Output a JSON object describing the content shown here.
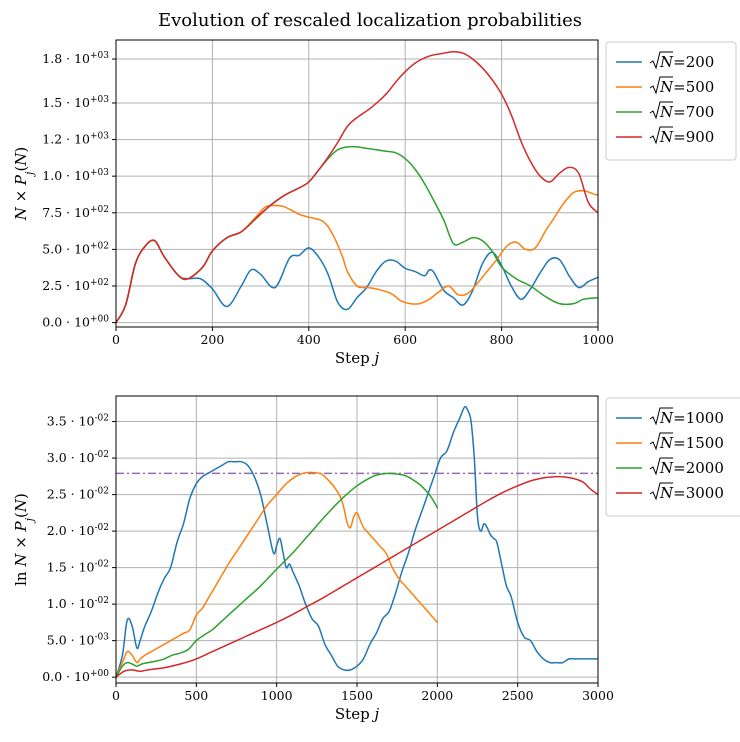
{
  "suptitle": "Evolution of rescaled localization probabilities",
  "colors": {
    "blue": "#1f77b4",
    "orange": "#ff7f0e",
    "green": "#2ca02c",
    "red": "#d62728",
    "purple": "#9467bd"
  },
  "chart_data": [
    {
      "type": "line",
      "xlabel": "Step j",
      "ylabel": "N × P_j(N)",
      "xlim": [
        0,
        1000
      ],
      "ylim": [
        -30,
        1930
      ],
      "xticks": [
        0,
        200,
        400,
        600,
        800,
        1000
      ],
      "xtick_labels": [
        "0",
        "200",
        "400",
        "600",
        "800",
        "1000"
      ],
      "yticks": [
        0,
        250,
        500,
        750,
        1000,
        1250,
        1500,
        1800
      ],
      "ytick_labels": [
        "0.0 · 10^+00",
        "2.5 · 10^+02",
        "5.0 · 10^+02",
        "7.5 · 10^+02",
        "1.0 · 10^+03",
        "1.2 · 10^+03",
        "1.5 · 10^+03",
        "1.8 · 10^+03"
      ],
      "grid": true,
      "legend": "outside-right",
      "series": [
        {
          "name": "√N=200",
          "color": "#1f77b4",
          "x": [
            0,
            20,
            40,
            60,
            80,
            100,
            130,
            150,
            175,
            200,
            230,
            260,
            280,
            300,
            330,
            360,
            380,
            400,
            420,
            440,
            460,
            480,
            500,
            520,
            540,
            560,
            580,
            600,
            620,
            640,
            650,
            660,
            680,
            700,
            720,
            740,
            760,
            780,
            800,
            820,
            840,
            860,
            880,
            900,
            920,
            940,
            960,
            980,
            1000
          ],
          "y": [
            0,
            120,
            400,
            520,
            560,
            450,
            320,
            300,
            300,
            230,
            110,
            250,
            360,
            330,
            240,
            440,
            460,
            510,
            450,
            330,
            140,
            90,
            170,
            240,
            350,
            420,
            420,
            370,
            350,
            320,
            360,
            340,
            220,
            170,
            120,
            220,
            400,
            480,
            390,
            250,
            160,
            230,
            340,
            430,
            430,
            320,
            240,
            280,
            310
          ]
        },
        {
          "name": "√N=500",
          "color": "#ff7f0e",
          "x": [
            0,
            20,
            40,
            60,
            80,
            100,
            130,
            150,
            180,
            200,
            230,
            260,
            290,
            310,
            330,
            350,
            380,
            400,
            430,
            450,
            470,
            480,
            500,
            520,
            540,
            570,
            590,
            610,
            630,
            650,
            670,
            690,
            710,
            730,
            750,
            770,
            790,
            810,
            830,
            850,
            870,
            890,
            910,
            930,
            950,
            970,
            990,
            1000
          ],
          "y": [
            0,
            120,
            400,
            520,
            560,
            450,
            320,
            300,
            380,
            490,
            580,
            620,
            720,
            790,
            800,
            790,
            740,
            720,
            690,
            600,
            450,
            350,
            250,
            240,
            230,
            200,
            150,
            130,
            130,
            160,
            210,
            250,
            190,
            200,
            270,
            350,
            430,
            520,
            550,
            500,
            510,
            620,
            720,
            820,
            890,
            900,
            880,
            870
          ]
        },
        {
          "name": "√N=700",
          "color": "#2ca02c",
          "x": [
            0,
            20,
            40,
            60,
            80,
            100,
            130,
            150,
            180,
            200,
            230,
            260,
            290,
            320,
            350,
            380,
            400,
            420,
            440,
            460,
            480,
            500,
            520,
            540,
            560,
            580,
            600,
            620,
            640,
            660,
            680,
            700,
            720,
            740,
            760,
            780,
            800,
            830,
            860,
            890,
            920,
            950,
            970,
            1000
          ],
          "y": [
            0,
            120,
            400,
            520,
            560,
            450,
            320,
            300,
            380,
            490,
            580,
            620,
            710,
            800,
            870,
            920,
            960,
            1040,
            1120,
            1180,
            1200,
            1200,
            1190,
            1180,
            1170,
            1160,
            1120,
            1050,
            950,
            830,
            700,
            540,
            550,
            580,
            560,
            490,
            380,
            300,
            250,
            180,
            130,
            130,
            160,
            170
          ]
        },
        {
          "name": "√N=900",
          "color": "#d62728",
          "x": [
            0,
            20,
            40,
            60,
            80,
            100,
            130,
            150,
            180,
            200,
            230,
            260,
            290,
            320,
            350,
            380,
            400,
            420,
            440,
            460,
            480,
            500,
            530,
            560,
            590,
            620,
            650,
            680,
            700,
            720,
            740,
            760,
            780,
            800,
            820,
            840,
            860,
            880,
            900,
            920,
            940,
            960,
            980,
            1000
          ],
          "y": [
            0,
            120,
            400,
            520,
            560,
            450,
            320,
            300,
            380,
            490,
            580,
            620,
            710,
            800,
            870,
            920,
            960,
            1040,
            1130,
            1230,
            1340,
            1400,
            1470,
            1560,
            1680,
            1770,
            1820,
            1840,
            1850,
            1840,
            1800,
            1740,
            1660,
            1560,
            1420,
            1240,
            1100,
            1000,
            960,
            1020,
            1060,
            1020,
            820,
            750
          ]
        }
      ]
    },
    {
      "type": "line",
      "xlabel": "Step j",
      "ylabel": "ln N × P_j(N)",
      "xlim": [
        0,
        3000
      ],
      "ylim": [
        -0.0008,
        0.0385
      ],
      "xticks": [
        0,
        500,
        1000,
        1500,
        2000,
        2500,
        3000
      ],
      "xtick_labels": [
        "0",
        "500",
        "1000",
        "1500",
        "2000",
        "2500",
        "3000"
      ],
      "yticks": [
        0,
        0.005,
        0.01,
        0.015,
        0.02,
        0.025,
        0.03,
        0.035
      ],
      "ytick_labels": [
        "0.0 · 10^+00",
        "5.0 · 10^-03",
        "1.0 · 10^-02",
        "1.5 · 10^-02",
        "2.0 · 10^-02",
        "2.5 · 10^-02",
        "3.0 · 10^-02",
        "3.5 · 10^-02"
      ],
      "grid": true,
      "legend": "outside-right",
      "hline": {
        "y": 0.0279,
        "color": "#9467bd",
        "style": "dash-dot"
      },
      "series": [
        {
          "name": "√N=1000",
          "color": "#1f77b4",
          "x": [
            0,
            40,
            70,
            100,
            130,
            150,
            180,
            220,
            260,
            300,
            340,
            380,
            420,
            460,
            500,
            540,
            580,
            620,
            660,
            700,
            740,
            780,
            820,
            860,
            900,
            940,
            980,
            1000,
            1020,
            1040,
            1060,
            1080,
            1100,
            1140,
            1180,
            1220,
            1260,
            1300,
            1340,
            1380,
            1420,
            1460,
            1500,
            1540,
            1580,
            1620,
            1660,
            1700,
            1740,
            1780,
            1820,
            1860,
            1900,
            1940,
            1980,
            2020,
            2060,
            2100,
            2140,
            2170,
            2190,
            2210,
            2230,
            2250,
            2270,
            2290,
            2310,
            2330,
            2350,
            2370,
            2400,
            2430,
            2460,
            2500,
            2540,
            2580,
            2620,
            2660,
            2700,
            2740,
            2780,
            2820,
            2860,
            2900,
            2940,
            2980,
            3000
          ],
          "y": [
            0,
            0.003,
            0.0078,
            0.007,
            0.004,
            0.005,
            0.007,
            0.009,
            0.0115,
            0.0135,
            0.015,
            0.0185,
            0.021,
            0.0245,
            0.0265,
            0.0275,
            0.028,
            0.0285,
            0.029,
            0.0295,
            0.0295,
            0.0295,
            0.029,
            0.0275,
            0.025,
            0.021,
            0.017,
            0.018,
            0.019,
            0.017,
            0.015,
            0.0155,
            0.0145,
            0.0125,
            0.01,
            0.008,
            0.007,
            0.0045,
            0.003,
            0.0015,
            0.001,
            0.001,
            0.0015,
            0.0025,
            0.0045,
            0.006,
            0.008,
            0.009,
            0.0115,
            0.0145,
            0.017,
            0.02,
            0.0225,
            0.025,
            0.0275,
            0.03,
            0.031,
            0.0335,
            0.0355,
            0.037,
            0.0365,
            0.035,
            0.03,
            0.022,
            0.02,
            0.021,
            0.0205,
            0.0195,
            0.019,
            0.0185,
            0.0155,
            0.0125,
            0.011,
            0.0075,
            0.0055,
            0.005,
            0.0035,
            0.0025,
            0.002,
            0.002,
            0.002,
            0.0025,
            0.0025,
            0.0025,
            0.0025,
            0.0025,
            0.0025
          ]
        },
        {
          "name": "√N=1500",
          "color": "#ff7f0e",
          "x": [
            0,
            40,
            70,
            100,
            130,
            150,
            180,
            220,
            260,
            300,
            340,
            380,
            420,
            460,
            500,
            540,
            580,
            620,
            660,
            700,
            760,
            820,
            880,
            940,
            1000,
            1060,
            1120,
            1180,
            1240,
            1280,
            1320,
            1360,
            1400,
            1420,
            1440,
            1460,
            1480,
            1500,
            1520,
            1540,
            1560,
            1600,
            1640,
            1680,
            1720,
            1760,
            1800,
            1840,
            1880,
            1920,
            1960,
            2000
          ],
          "y": [
            0,
            0.002,
            0.0035,
            0.003,
            0.002,
            0.0025,
            0.003,
            0.0035,
            0.004,
            0.0045,
            0.005,
            0.0055,
            0.006,
            0.0065,
            0.0085,
            0.0095,
            0.011,
            0.0125,
            0.014,
            0.0155,
            0.0175,
            0.0195,
            0.0215,
            0.0235,
            0.025,
            0.0265,
            0.0275,
            0.028,
            0.028,
            0.0278,
            0.027,
            0.026,
            0.0245,
            0.023,
            0.021,
            0.0205,
            0.022,
            0.0225,
            0.0215,
            0.0205,
            0.02,
            0.019,
            0.018,
            0.017,
            0.015,
            0.0135,
            0.0125,
            0.0115,
            0.0105,
            0.0095,
            0.0085,
            0.0075
          ]
        },
        {
          "name": "√N=2000",
          "color": "#2ca02c",
          "x": [
            0,
            40,
            70,
            100,
            130,
            160,
            200,
            250,
            300,
            350,
            400,
            450,
            500,
            550,
            600,
            650,
            700,
            750,
            800,
            900,
            1000,
            1100,
            1200,
            1300,
            1400,
            1500,
            1600,
            1650,
            1700,
            1750,
            1800,
            1850,
            1900,
            1950,
            1980,
            2000
          ],
          "y": [
            0,
            0.0015,
            0.002,
            0.0018,
            0.0015,
            0.0018,
            0.002,
            0.0022,
            0.0025,
            0.003,
            0.0033,
            0.0038,
            0.005,
            0.0058,
            0.0065,
            0.0075,
            0.0085,
            0.0095,
            0.0105,
            0.0125,
            0.0148,
            0.017,
            0.0195,
            0.022,
            0.0243,
            0.0262,
            0.0275,
            0.0278,
            0.0279,
            0.0278,
            0.0276,
            0.027,
            0.0262,
            0.025,
            0.024,
            0.0232
          ]
        },
        {
          "name": "√N=3000",
          "color": "#d62728",
          "x": [
            0,
            50,
            100,
            150,
            200,
            300,
            400,
            500,
            600,
            700,
            800,
            900,
            1000,
            1100,
            1200,
            1300,
            1400,
            1500,
            1600,
            1700,
            1800,
            1900,
            2000,
            2100,
            2200,
            2300,
            2400,
            2500,
            2600,
            2700,
            2800,
            2900,
            2950,
            3000
          ],
          "y": [
            0,
            0.0008,
            0.001,
            0.0008,
            0.001,
            0.0013,
            0.0018,
            0.0025,
            0.0035,
            0.0045,
            0.0055,
            0.0065,
            0.0075,
            0.0086,
            0.0098,
            0.011,
            0.0123,
            0.0136,
            0.0149,
            0.0162,
            0.0175,
            0.0188,
            0.0201,
            0.0214,
            0.0227,
            0.024,
            0.0252,
            0.0262,
            0.027,
            0.0274,
            0.0274,
            0.0268,
            0.0258,
            0.025
          ]
        }
      ]
    }
  ]
}
